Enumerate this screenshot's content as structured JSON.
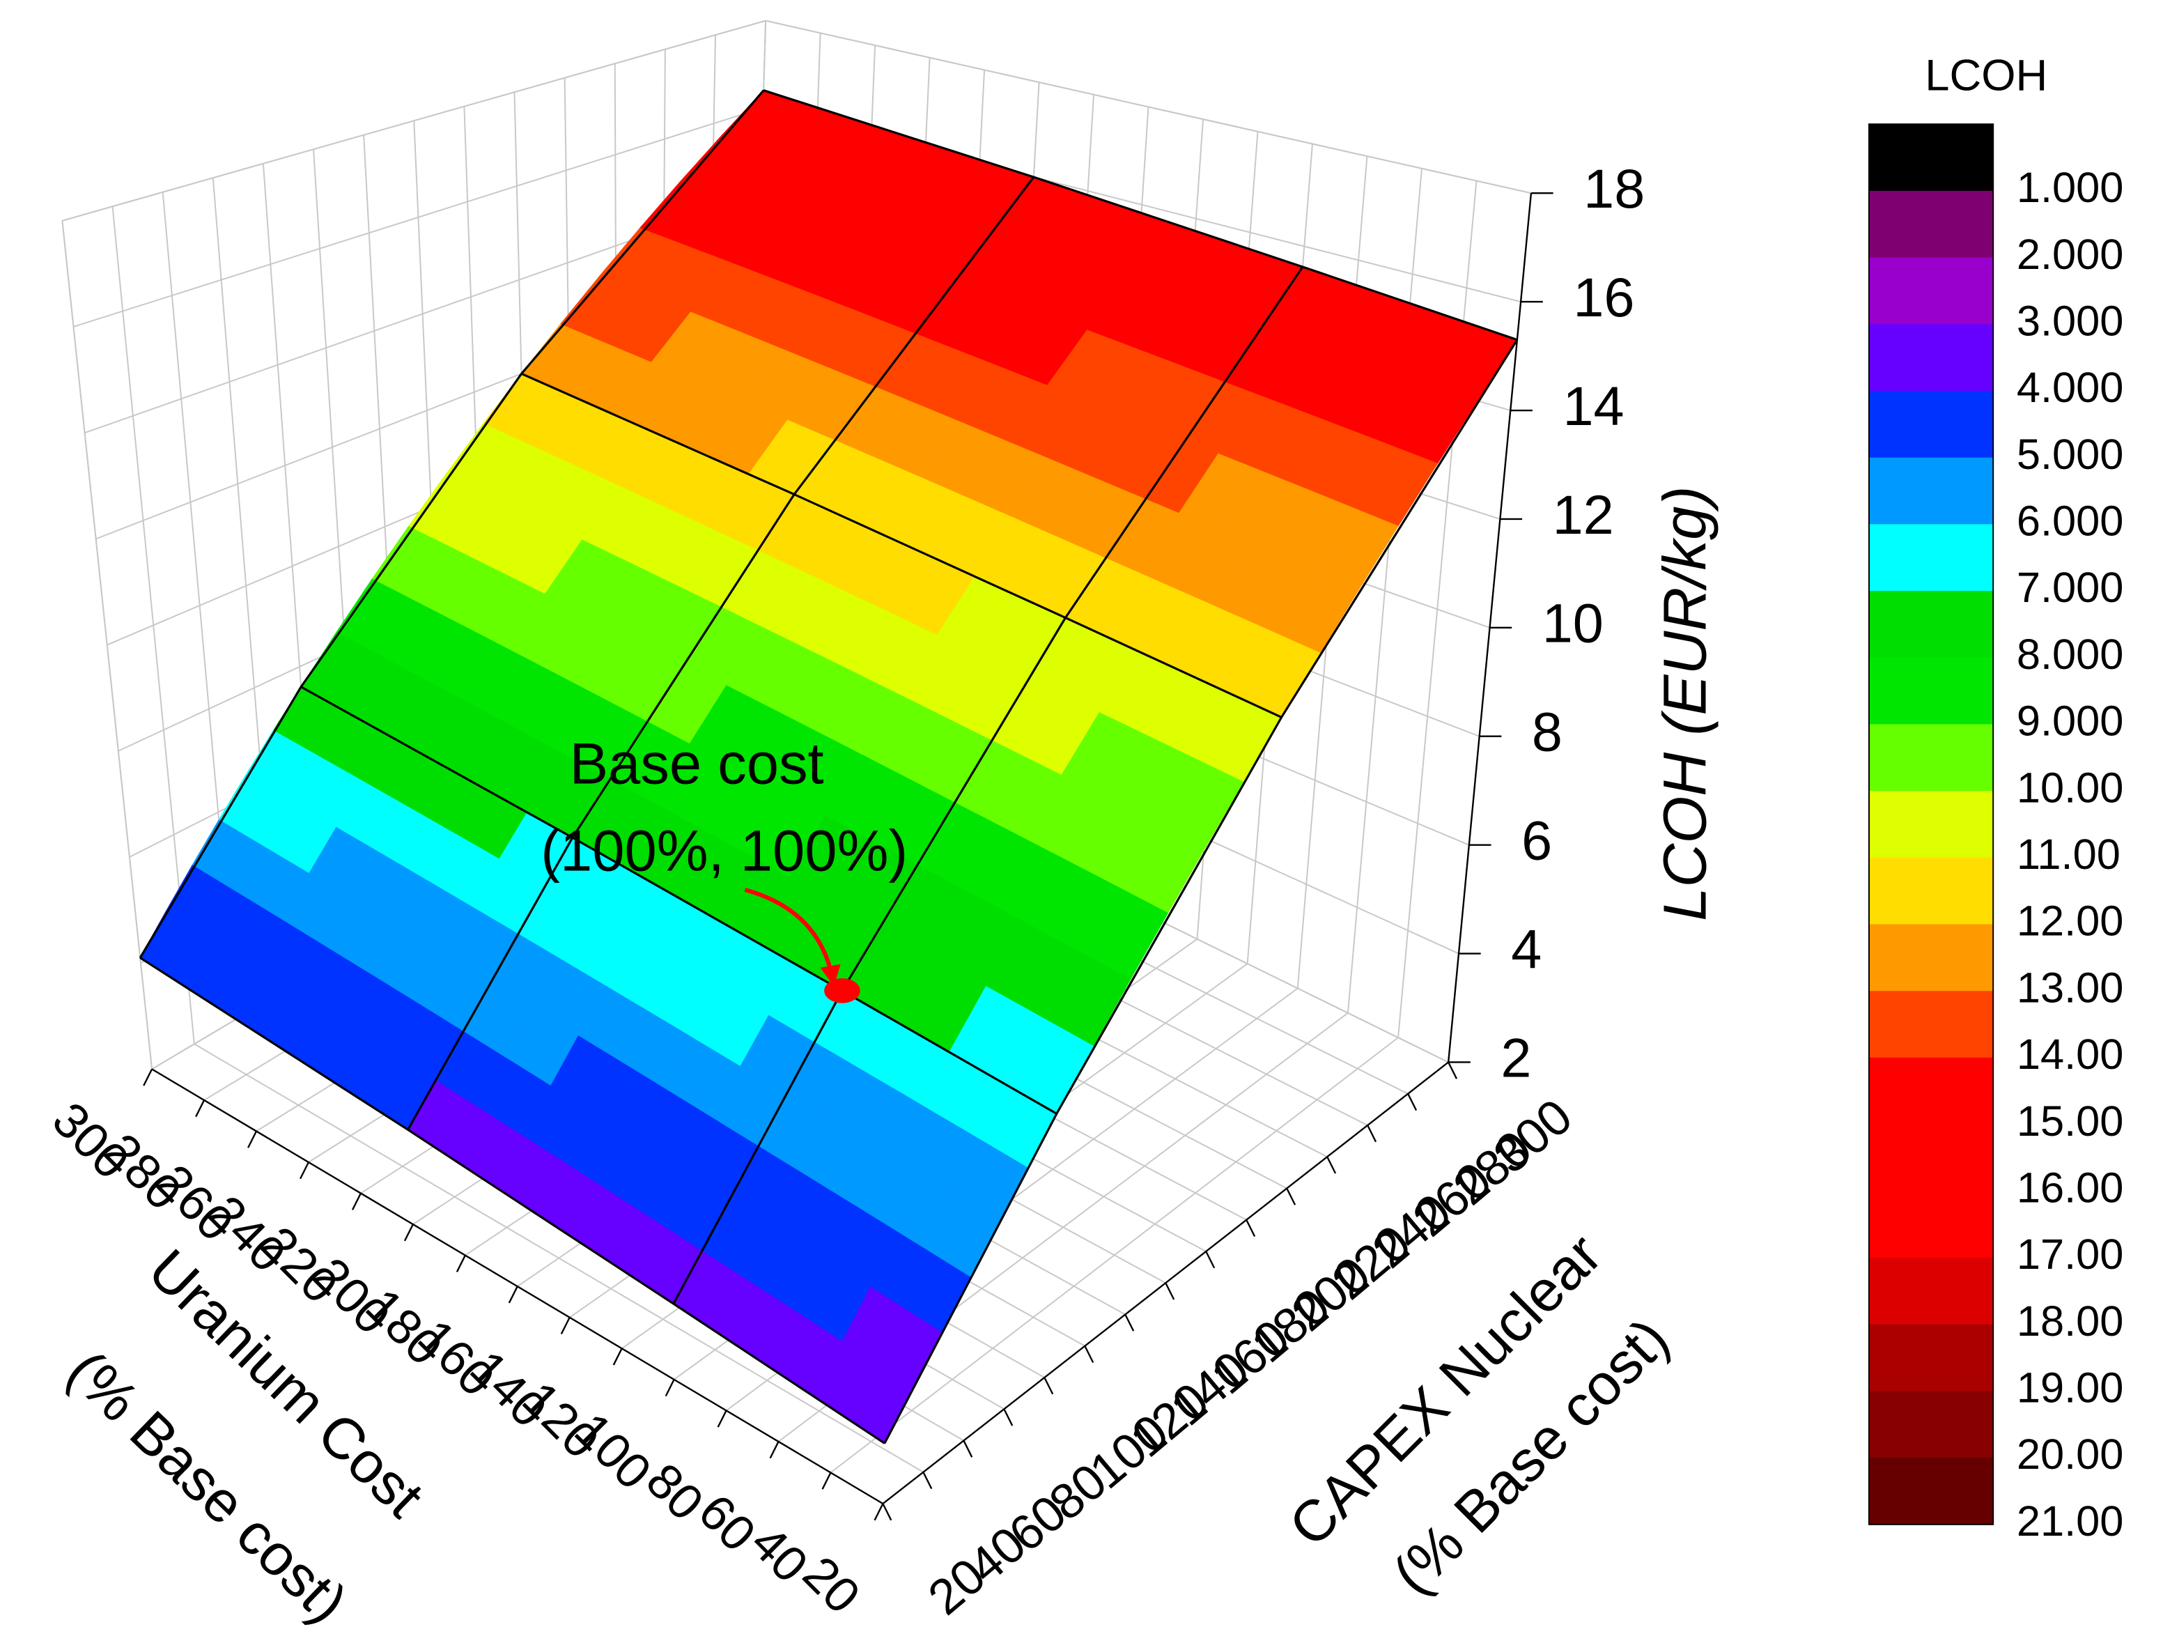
{
  "chart_data": {
    "type": "surface3d",
    "xlabel": [
      "Uranium Cost",
      "(% Base cost)"
    ],
    "ylabel": [
      "CAPEX Nuclear",
      "(% Base cost)"
    ],
    "zlabel": "LCOH (EUR/kg)",
    "x": [
      20,
      100,
      200,
      300
    ],
    "y": [
      20,
      100,
      200,
      300
    ],
    "z": [
      [
        3.0,
        3.3,
        3.7,
        4.1
      ],
      [
        6.5,
        6.8,
        7.2,
        7.6
      ],
      [
        10.9,
        11.2,
        11.6,
        12.0
      ],
      [
        15.3,
        15.6,
        16.0,
        16.4
      ]
    ],
    "xlim": [
      20,
      300
    ],
    "ylim": [
      20,
      300
    ],
    "zlim": [
      2,
      18
    ],
    "xticks": [
      20,
      40,
      60,
      80,
      100,
      120,
      140,
      160,
      180,
      200,
      220,
      240,
      260,
      280,
      300
    ],
    "yticks": [
      20,
      40,
      60,
      80,
      100,
      120,
      140,
      160,
      180,
      200,
      220,
      240,
      260,
      280,
      300
    ],
    "zticks": [
      2,
      4,
      6,
      8,
      10,
      12,
      14,
      16,
      18
    ],
    "grid": true,
    "colorbar": {
      "title": "LCOH",
      "ticks": [
        {
          "value": 1,
          "label": "1.000"
        },
        {
          "value": 2,
          "label": "2.000"
        },
        {
          "value": 3,
          "label": "3.000"
        },
        {
          "value": 4,
          "label": "4.000"
        },
        {
          "value": 5,
          "label": "5.000"
        },
        {
          "value": 6,
          "label": "6.000"
        },
        {
          "value": 7,
          "label": "7.000"
        },
        {
          "value": 8,
          "label": "8.000"
        },
        {
          "value": 9,
          "label": "9.000"
        },
        {
          "value": 10,
          "label": "10.00"
        },
        {
          "value": 11,
          "label": "11.00"
        },
        {
          "value": 12,
          "label": "12.00"
        },
        {
          "value": 13,
          "label": "13.00"
        },
        {
          "value": 14,
          "label": "14.00"
        },
        {
          "value": 15,
          "label": "15.00"
        },
        {
          "value": 16,
          "label": "16.00"
        },
        {
          "value": 17,
          "label": "17.00"
        },
        {
          "value": 18,
          "label": "18.00"
        },
        {
          "value": 19,
          "label": "19.00"
        },
        {
          "value": 20,
          "label": "20.00"
        },
        {
          "value": 21,
          "label": "21.00"
        }
      ],
      "colors": [
        "#000000",
        "#7f0070",
        "#9900cc",
        "#6600ff",
        "#0033ff",
        "#0099ff",
        "#00ffff",
        "#00dd00",
        "#00e600",
        "#66ff00",
        "#ddff00",
        "#ffdd00",
        "#ff9900",
        "#ff4400",
        "#ff0000",
        "#ff0000",
        "#ff0000",
        "#dd0000",
        "#aa0000",
        "#880000",
        "#660000"
      ]
    },
    "annotation": {
      "text": [
        "Base cost",
        "(100%, 100%)"
      ],
      "x": 100,
      "y": 100,
      "color": "#ff0000"
    }
  }
}
